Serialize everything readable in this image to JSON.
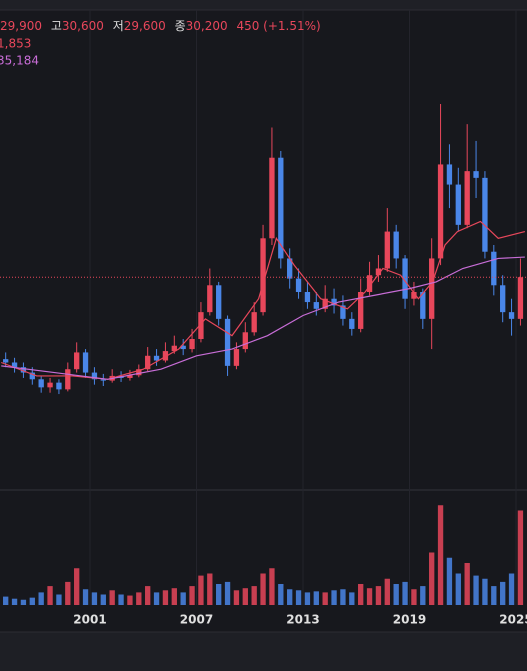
{
  "chart_data": {
    "type": "candlestick",
    "header": {
      "open": "29,900",
      "high_label": "고",
      "high": "30,600",
      "low_label": "저",
      "low": "29,600",
      "close_label": "종",
      "close": "30,200",
      "change": "450 (+1.51%)"
    },
    "x": [
      1996.25,
      1996.75,
      1997.25,
      1997.75,
      1998.25,
      1998.75,
      1999.25,
      1999.75,
      2000.25,
      2000.75,
      2001.25,
      2001.75,
      2002.25,
      2002.75,
      2003.25,
      2003.75,
      2004.25,
      2004.75,
      2005.25,
      2005.75,
      2006.25,
      2006.75,
      2007.25,
      2007.75,
      2008.25,
      2008.75,
      2009.25,
      2009.75,
      2010.25,
      2010.75,
      2011.25,
      2011.75,
      2012.25,
      2012.75,
      2013.25,
      2013.75,
      2014.25,
      2014.75,
      2015.25,
      2015.75,
      2016.25,
      2016.75,
      2017.25,
      2017.75,
      2018.25,
      2018.75,
      2019.25,
      2019.75,
      2020.25,
      2020.75,
      2021.25,
      2021.75,
      2022.25,
      2022.75,
      2023.25,
      2023.75,
      2024.25,
      2024.75,
      2025.25
    ],
    "open": [
      18000,
      17500,
      16800,
      16000,
      15000,
      13800,
      14500,
      13500,
      16500,
      19000,
      16000,
      15000,
      14800,
      15500,
      15200,
      15600,
      16500,
      18500,
      17800,
      19200,
      20000,
      19500,
      21000,
      25000,
      29000,
      24000,
      17000,
      19500,
      22000,
      25000,
      36000,
      48000,
      33000,
      30000,
      28000,
      26500,
      25500,
      27000,
      26000,
      24000,
      22500,
      28000,
      30500,
      31500,
      37000,
      33000,
      27000,
      28000,
      24000,
      33000,
      47000,
      44000,
      38000,
      46000,
      45000,
      34000,
      29000,
      25000,
      24000
    ],
    "high": [
      19000,
      18200,
      17500,
      16800,
      15500,
      15200,
      15000,
      17500,
      20500,
      19500,
      16800,
      15800,
      16500,
      16200,
      16400,
      17200,
      19800,
      19500,
      20500,
      21500,
      21000,
      22500,
      26500,
      31500,
      29500,
      24500,
      20500,
      23500,
      26500,
      38000,
      52500,
      49000,
      34500,
      31500,
      29500,
      28000,
      29000,
      28500,
      27500,
      25000,
      30000,
      32500,
      33500,
      40500,
      38000,
      33500,
      29500,
      28500,
      36000,
      56000,
      50000,
      46500,
      53000,
      50500,
      46000,
      35000,
      30500,
      27000,
      33000
    ],
    "low": [
      16800,
      16000,
      15200,
      14200,
      13000,
      13000,
      12800,
      13200,
      16000,
      15200,
      14200,
      14000,
      14500,
      14600,
      14800,
      15300,
      16200,
      17000,
      17500,
      18800,
      18600,
      19000,
      20500,
      24500,
      23000,
      15500,
      16500,
      19000,
      21500,
      24500,
      35000,
      31500,
      28500,
      27000,
      25500,
      24500,
      25000,
      24800,
      23000,
      21500,
      22000,
      27500,
      29500,
      31000,
      31500,
      25500,
      26000,
      22500,
      19500,
      32000,
      40500,
      37000,
      37500,
      42000,
      33000,
      27500,
      23500,
      21500,
      23000
    ],
    "close": [
      17500,
      16800,
      16000,
      15000,
      13800,
      14500,
      13500,
      16500,
      19000,
      16000,
      15000,
      14800,
      15500,
      15200,
      15600,
      16500,
      18500,
      17800,
      19200,
      20000,
      19500,
      21000,
      25000,
      29000,
      24000,
      17000,
      19500,
      22000,
      25000,
      36000,
      48000,
      33000,
      30000,
      28000,
      26500,
      25500,
      27000,
      26000,
      24000,
      22500,
      28000,
      30500,
      31500,
      37000,
      33000,
      27000,
      28000,
      24000,
      33000,
      47000,
      44000,
      38000,
      46000,
      45000,
      34000,
      29000,
      25000,
      24000,
      30200
    ],
    "volume": [
      8,
      6,
      5,
      7,
      12,
      18,
      10,
      22,
      35,
      15,
      12,
      10,
      14,
      10,
      9,
      12,
      18,
      12,
      14,
      16,
      12,
      18,
      28,
      30,
      20,
      22,
      14,
      16,
      18,
      30,
      35,
      20,
      15,
      14,
      12,
      13,
      12,
      14,
      15,
      12,
      20,
      16,
      18,
      25,
      20,
      22,
      15,
      18,
      50,
      95,
      45,
      30,
      40,
      28,
      25,
      18,
      22,
      30,
      90
    ],
    "volume_ylim": [
      0,
      100
    ],
    "up_color": "#e8475b",
    "down_color": "#4a86e8",
    "price_line": 30200,
    "series": [
      {
        "name": "1,853",
        "color": "#e8475b",
        "x": [
          1996,
          1998,
          2000,
          2002,
          2004,
          2006,
          2007.5,
          2009,
          2010.5,
          2011.5,
          2012.5,
          2014,
          2015.5,
          2016.5,
          2017.5,
          2018.5,
          2019.5,
          2020.3,
          2021,
          2021.7,
          2023,
          2024,
          2025.5
        ],
        "values": [
          17500,
          15500,
          15500,
          15000,
          16500,
          19500,
          24000,
          21500,
          27000,
          36000,
          32000,
          27000,
          25500,
          28000,
          31500,
          30500,
          27000,
          29500,
          35000,
          37000,
          38500,
          36000,
          37000
        ]
      },
      {
        "name": "35,184",
        "color": "#c86dd7",
        "x": [
          1996,
          1999,
          2002,
          2005,
          2007,
          2009,
          2011,
          2013,
          2015,
          2017,
          2019,
          2020.5,
          2022,
          2024,
          2025.5
        ],
        "values": [
          17000,
          16000,
          15000,
          16500,
          18500,
          19500,
          21500,
          24500,
          26500,
          27500,
          28500,
          29500,
          31500,
          33000,
          33200
        ]
      }
    ],
    "xlim": [
      1995.93,
      2025.62
    ],
    "ylim": [
      0,
      70000
    ],
    "xticks": [
      2001,
      2007,
      2013,
      2019,
      2025
    ]
  }
}
